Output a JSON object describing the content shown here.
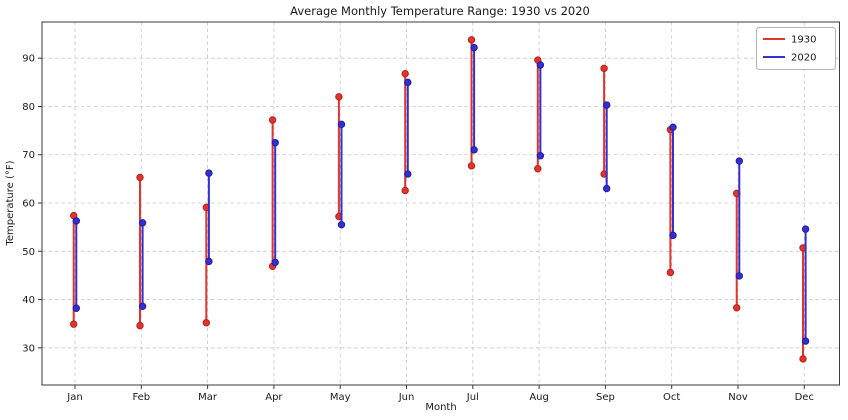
{
  "figure": {
    "title": "Average Monthly Temperature Range: 1930 vs 2020",
    "xlabel": "Month",
    "ylabel": "Temperature (°F)"
  },
  "chart_data": {
    "type": "line",
    "subtype": "vertical-range (min–max temperature lines with endpoint dots)",
    "title": "Average Monthly Temperature Range: 1930 vs 2020",
    "xlabel": "Month",
    "ylabel": "Temperature (°F)",
    "categories": [
      "Jan",
      "Feb",
      "Mar",
      "Apr",
      "May",
      "Jun",
      "Jul",
      "Aug",
      "Sep",
      "Oct",
      "Nov",
      "Dec"
    ],
    "yticks": [
      30,
      40,
      50,
      60,
      70,
      80,
      90
    ],
    "ylim": [
      22.3,
      97.5
    ],
    "grid": true,
    "grid_style": "dashed",
    "legend_position": "upper right",
    "series": [
      {
        "name": "1930",
        "color": "#e0342e",
        "edge_color": "#b8211c",
        "low": [
          34.9,
          34.6,
          35.2,
          46.9,
          57.2,
          62.6,
          67.7,
          67.1,
          66.0,
          45.6,
          38.3,
          27.7
        ],
        "high": [
          57.4,
          65.3,
          59.1,
          77.2,
          82.0,
          86.8,
          93.8,
          89.6,
          87.9,
          75.2,
          62.0,
          50.7
        ]
      },
      {
        "name": "2020",
        "color": "#3330cf",
        "edge_color": "#211da6",
        "low": [
          38.2,
          38.6,
          47.9,
          47.7,
          55.5,
          66.0,
          71.0,
          69.8,
          63.0,
          53.3,
          44.9,
          31.4
        ],
        "high": [
          56.3,
          55.9,
          66.2,
          72.5,
          76.3,
          85.0,
          92.2,
          88.6,
          80.3,
          75.7,
          68.7,
          54.6
        ]
      }
    ]
  }
}
